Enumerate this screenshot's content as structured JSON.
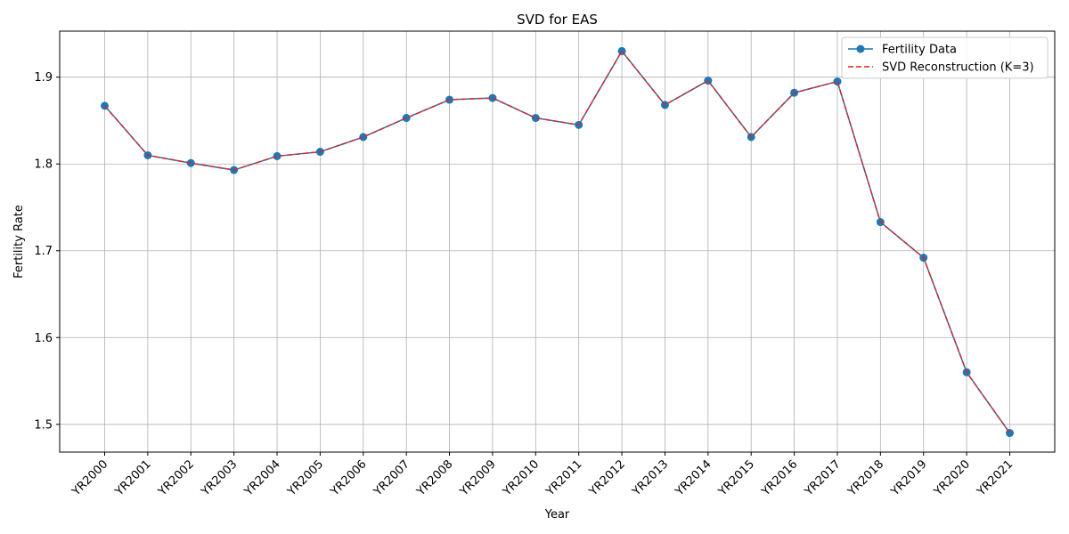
{
  "chart_data": {
    "type": "line",
    "title": "SVD for EAS",
    "xlabel": "Year",
    "ylabel": "Fertility Rate",
    "categories": [
      "YR2000",
      "YR2001",
      "YR2002",
      "YR2003",
      "YR2004",
      "YR2005",
      "YR2006",
      "YR2007",
      "YR2008",
      "YR2009",
      "YR2010",
      "YR2011",
      "YR2012",
      "YR2013",
      "YR2014",
      "YR2015",
      "YR2016",
      "YR2017",
      "YR2018",
      "YR2019",
      "YR2020",
      "YR2021"
    ],
    "ylim": [
      1.468,
      1.953
    ],
    "yticks": [
      "1.5",
      "1.6",
      "1.7",
      "1.8",
      "1.9"
    ],
    "grid": true,
    "legend_position": "upper-right",
    "series": [
      {
        "name": "Fertility Data",
        "color": "#1f77b4",
        "style": "solid-with-markers",
        "values": [
          1.867,
          1.81,
          1.801,
          1.793,
          1.809,
          1.814,
          1.831,
          1.853,
          1.874,
          1.876,
          1.853,
          1.845,
          1.93,
          1.868,
          1.896,
          1.831,
          1.882,
          1.895,
          1.733,
          1.692,
          1.56,
          1.49
        ]
      },
      {
        "name": "SVD Reconstruction (K=3)",
        "color": "#d62728",
        "style": "dashed",
        "values": [
          1.867,
          1.81,
          1.801,
          1.793,
          1.809,
          1.814,
          1.831,
          1.853,
          1.874,
          1.876,
          1.853,
          1.845,
          1.93,
          1.868,
          1.896,
          1.831,
          1.882,
          1.895,
          1.733,
          1.692,
          1.56,
          1.49
        ]
      }
    ]
  }
}
